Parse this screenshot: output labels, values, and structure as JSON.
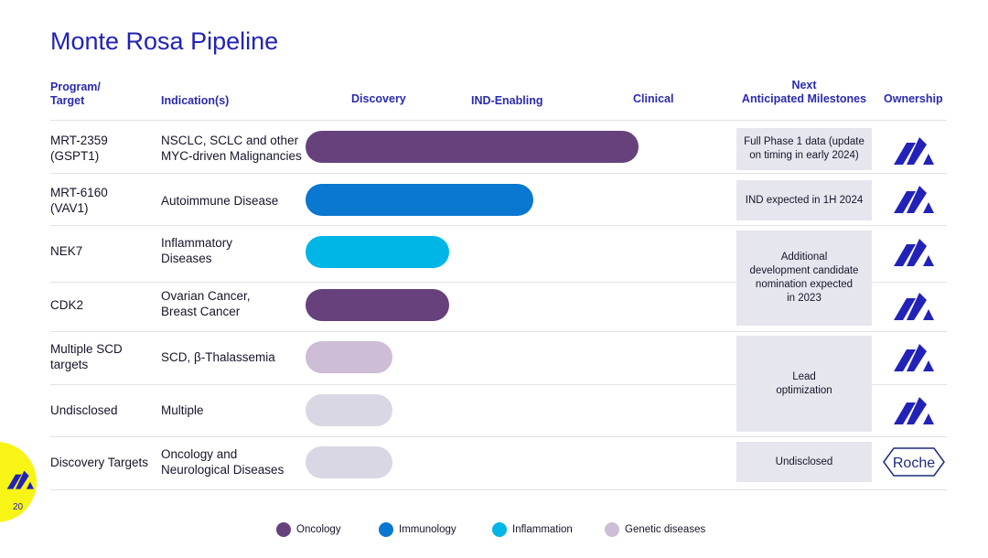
{
  "title": "Monte Rosa Pipeline",
  "headers": {
    "program": "Program/\nTarget",
    "indication": "Indication(s)",
    "discovery": "Discovery",
    "ind_enabling": "IND-Enabling",
    "clinical": "Clinical",
    "milestones": "Next\nAnticipated Milestones",
    "ownership": "Ownership"
  },
  "rows": [
    {
      "program": "MRT-2359\n(GSPT1)",
      "indication": "NSCLC, SCLC and other\nMYC-driven Malignancies",
      "area": "Oncology",
      "progress": 1.0
    },
    {
      "program": "MRT-6160\n(VAV1)",
      "indication": "Autoimmune Disease",
      "area": "Immunology",
      "progress": 0.68
    },
    {
      "program": "NEK7",
      "indication": "Inflammatory\nDiseases",
      "area": "Inflammation",
      "progress": 0.43
    },
    {
      "program": "CDK2",
      "indication": "Ovarian Cancer,\nBreast Cancer",
      "area": "Oncology",
      "progress": 0.43
    },
    {
      "program": "Multiple SCD\ntargets",
      "indication": "SCD, β-Thalassemia",
      "area": "Genetic diseases",
      "progress": 0.26
    },
    {
      "program": "Undisclosed",
      "indication": "Multiple",
      "area": "Genetic diseases (light)",
      "progress": 0.26
    },
    {
      "program": "Discovery Targets",
      "indication": "Oncology and\nNeurological Diseases",
      "area": "Genetic diseases (light)",
      "progress": 0.26
    }
  ],
  "milestones": {
    "m1": "Full Phase 1 data (update\non timing in early 2024)",
    "m2": "IND expected in 1H 2024",
    "m3": "Additional\ndevelopment candidate\nnomination expected\nin 2023",
    "m4": "Lead\noptimization",
    "m5": "Undisclosed"
  },
  "ownership": {
    "roche": "Roche"
  },
  "legend": [
    {
      "label": "Oncology",
      "color": "#66417c"
    },
    {
      "label": "Immunology",
      "color": "#0a77d0"
    },
    {
      "label": "Inflammation",
      "color": "#00b6e6"
    },
    {
      "label": "Genetic diseases",
      "color": "#cdbdd6"
    }
  ],
  "colors": {
    "oncology": "#66417c",
    "immunology": "#0a77d0",
    "inflammation": "#00b6e6",
    "genetic": "#cdbdd6",
    "genetic_light": "#d9d7e3",
    "brand": "#2222b8"
  },
  "page_number": "20"
}
